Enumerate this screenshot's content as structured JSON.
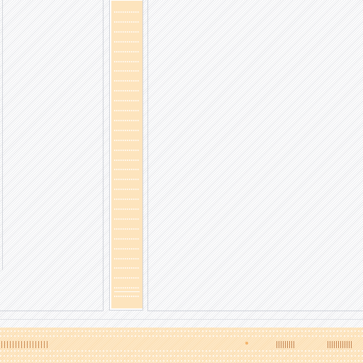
{
  "window": {
    "panels": [
      "left-panel",
      "list-column",
      "right-panel"
    ]
  },
  "list": {
    "row_count": 29,
    "row_color": "#fde4bd"
  },
  "taskbar": {
    "background_color": "#fde8c7",
    "icons": [
      "start-icon-group",
      "status-dot-icon",
      "tray-icon-group",
      "clock-icon"
    ]
  },
  "colors": {
    "border": "#cfd2d9",
    "accent": "#fde4bd",
    "taskbar_glyph": "#b8703a"
  }
}
